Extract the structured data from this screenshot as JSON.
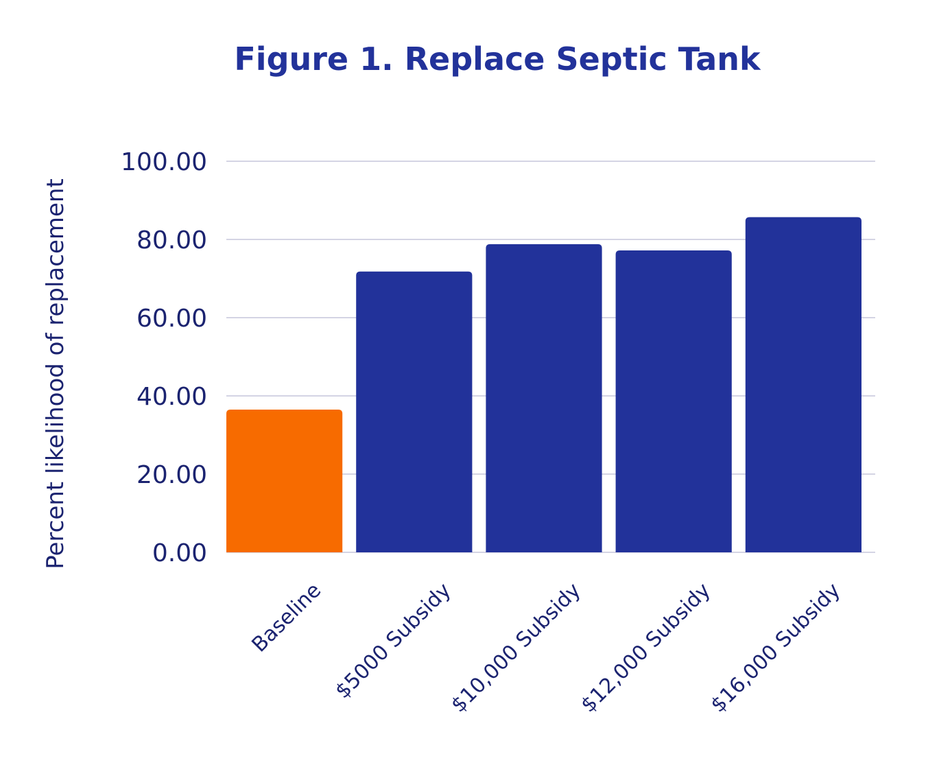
{
  "chart_data": {
    "type": "bar",
    "title": "Figure 1. Replace Septic Tank",
    "xlabel": "",
    "ylabel": "Percent likelihood of replacement",
    "categories": [
      "Baseline",
      "$5000 Subsidy",
      "$10,000 Subsidy",
      "$12,000 Subsidy",
      "$16,000 Subsidy"
    ],
    "values": [
      36.5,
      71.8,
      78.8,
      77.2,
      85.7
    ],
    "bar_colors": [
      "#F76B00",
      "#22329A",
      "#22329A",
      "#22329A",
      "#22329A"
    ],
    "ylim": [
      0,
      100
    ],
    "yticks": [
      "0.00",
      "20.00",
      "40.00",
      "60.00",
      "80.00",
      "100.00"
    ],
    "ytick_values": [
      0,
      20,
      40,
      60,
      80,
      100
    ],
    "grid": true,
    "legend": "none",
    "text_color": "#1B2370",
    "title_color": "#22329A",
    "grid_color": "#D4D4E4"
  }
}
